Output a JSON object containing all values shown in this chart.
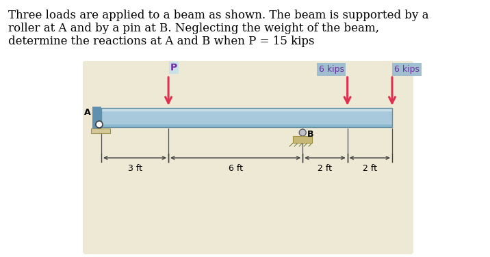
{
  "bg_color": "#ffffff",
  "diagram_bg": "#ede9d5",
  "beam_main": "#a8c8dc",
  "beam_light": "#c8dfe8",
  "beam_dark_top": "#8ab8cc",
  "beam_border": "#6090a8",
  "arrow_red": "#e03050",
  "label_bg": "#9bbdd0",
  "dim_color": "#404040",
  "title_lines": [
    "Three loads are applied to a beam as shown. The beam is supported by a",
    "roller at A and by a pin at B. Neglecting the weight of the beam,",
    "determine the reactions at A and B when P = 15 kips"
  ],
  "wall_blue": "#6090b0",
  "roller_bg": "#d8e8f0",
  "pin_gray": "#909090",
  "ped_tan": "#c8b878",
  "ped_border": "#a09040"
}
